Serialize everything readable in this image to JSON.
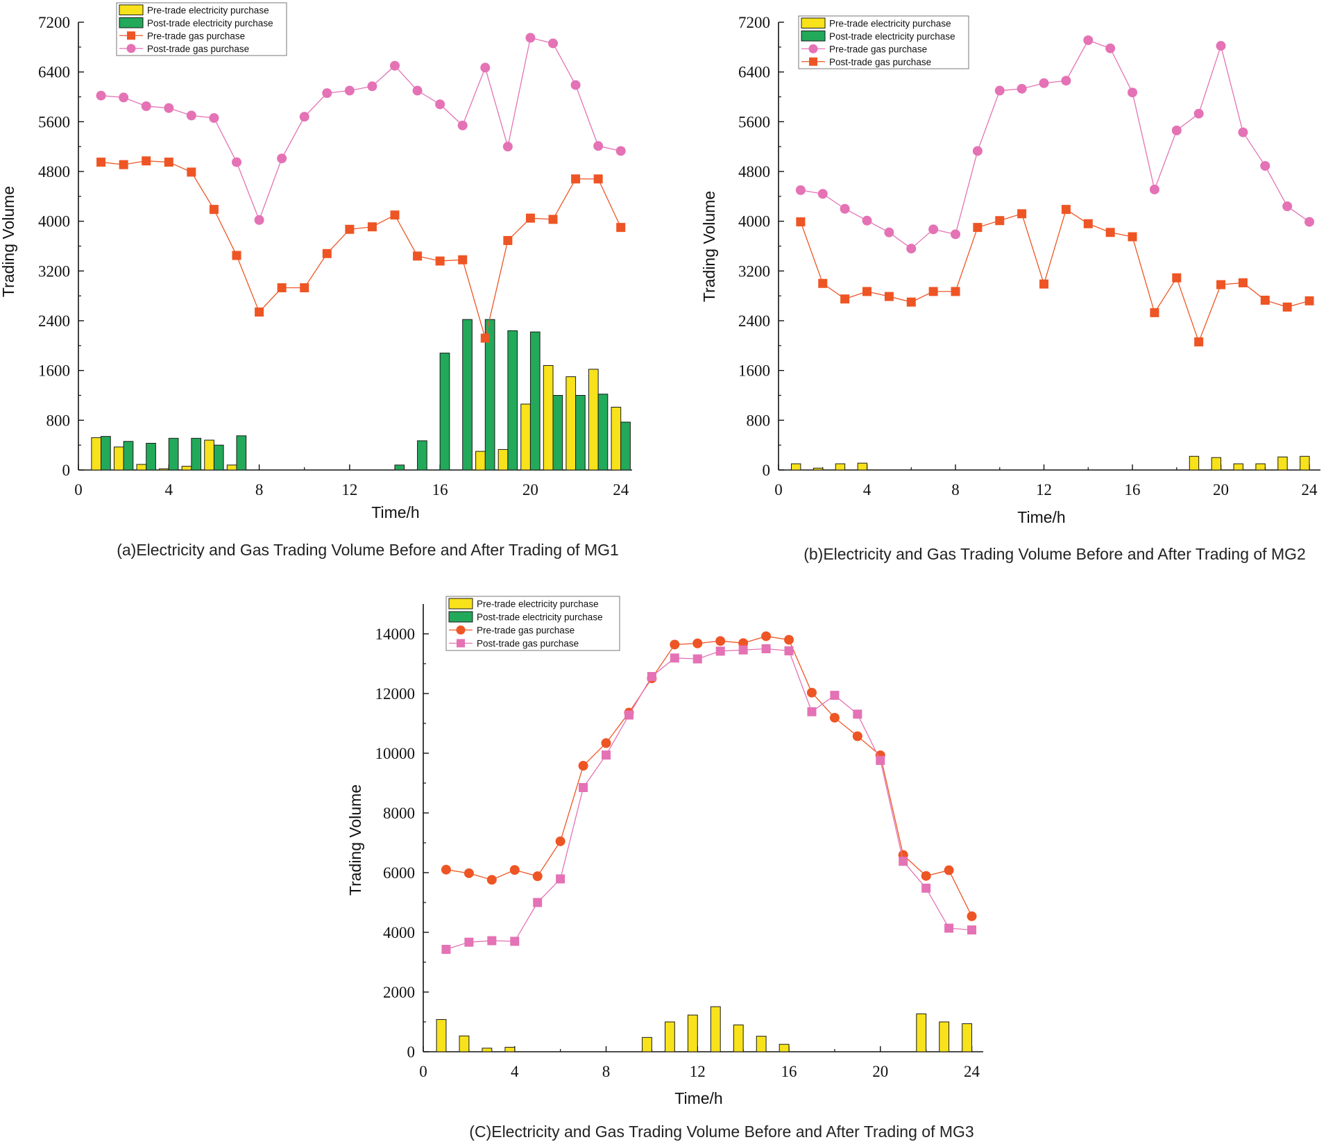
{
  "colors": {
    "pre_elec": "#F7E21B",
    "post_elec": "#22A95A",
    "gas_orange": "#EE5524",
    "gas_pink": "#E472B5",
    "bar_edge": "#1a1a1a"
  },
  "chart_data": [
    {
      "id": "mg1",
      "type": "bar+line",
      "title": "(a)Electricity and Gas Trading Volume Before and After Trading of MG1",
      "xlabel": "Time/h",
      "ylabel": "Trading Volume",
      "xlim": [
        0,
        24.5
      ],
      "ylim": [
        0,
        7200
      ],
      "xticks": [
        0,
        4,
        8,
        12,
        16,
        20,
        24
      ],
      "yticks": [
        0,
        800,
        1600,
        2400,
        3200,
        4000,
        4800,
        5600,
        6400,
        7200
      ],
      "x": [
        1,
        2,
        3,
        4,
        5,
        6,
        7,
        8,
        9,
        10,
        11,
        12,
        13,
        14,
        15,
        16,
        17,
        18,
        19,
        20,
        21,
        22,
        23,
        24
      ],
      "legend": [
        {
          "label": "Pre-trade electricity purchase",
          "kind": "bar",
          "color": "#F7E21B"
        },
        {
          "label": "Post-trade electricity purchase",
          "kind": "bar",
          "color": "#22A95A"
        },
        {
          "label": "Pre-trade gas purchase",
          "kind": "line",
          "marker": "square",
          "color": "#EE5524"
        },
        {
          "label": "Post-trade gas purchase",
          "kind": "line",
          "marker": "circle",
          "color": "#E472B5"
        }
      ],
      "bars_pre": [
        520,
        370,
        90,
        20,
        60,
        480,
        80,
        0,
        0,
        0,
        0,
        0,
        0,
        0,
        0,
        0,
        0,
        300,
        330,
        1060,
        1680,
        1500,
        1620,
        1010
      ],
      "bars_post": [
        540,
        460,
        430,
        510,
        510,
        400,
        550,
        0,
        0,
        0,
        0,
        0,
        0,
        80,
        470,
        1880,
        2420,
        2420,
        2240,
        2220,
        1200,
        1200,
        1220,
        770
      ],
      "lines": [
        {
          "values": [
            4950,
            4910,
            4970,
            4950,
            4790,
            4190,
            3450,
            2540,
            2930,
            2930,
            3480,
            3870,
            3910,
            4100,
            3440,
            3360,
            3380,
            2120,
            3690,
            4050,
            4030,
            4680,
            4680,
            3900
          ]
        },
        {
          "values": [
            6020,
            5990,
            5850,
            5820,
            5700,
            5660,
            4950,
            4020,
            5010,
            5680,
            6060,
            6100,
            6170,
            6500,
            6100,
            5880,
            5540,
            6470,
            5200,
            6950,
            6860,
            6190,
            5210,
            5130
          ]
        }
      ]
    },
    {
      "id": "mg2",
      "type": "bar+line",
      "title": "(b)Electricity and Gas Trading Volume Before and After Trading of MG2",
      "xlabel": "Time/h",
      "ylabel": "Trading Volume",
      "xlim": [
        0,
        24.5
      ],
      "ylim": [
        0,
        7200
      ],
      "xticks": [
        0,
        4,
        8,
        12,
        16,
        20,
        24
      ],
      "yticks": [
        0,
        800,
        1600,
        2400,
        3200,
        4000,
        4800,
        5600,
        6400,
        7200
      ],
      "x": [
        1,
        2,
        3,
        4,
        5,
        6,
        7,
        8,
        9,
        10,
        11,
        12,
        13,
        14,
        15,
        16,
        17,
        18,
        19,
        20,
        21,
        22,
        23,
        24
      ],
      "legend": [
        {
          "label": "Pre-trade electricity purchase",
          "kind": "bar",
          "color": "#F7E21B"
        },
        {
          "label": "Post-trade electricity purchase",
          "kind": "bar",
          "color": "#22A95A"
        },
        {
          "label": "Pre-trade gas purchase",
          "kind": "line",
          "marker": "circle",
          "color": "#E472B5"
        },
        {
          "label": "Post-trade gas purchase",
          "kind": "line",
          "marker": "square",
          "color": "#EE5524"
        }
      ],
      "bars_pre": [
        100,
        30,
        100,
        110,
        0,
        0,
        0,
        0,
        0,
        0,
        0,
        0,
        0,
        0,
        0,
        0,
        0,
        0,
        220,
        200,
        100,
        100,
        210,
        220
      ],
      "bars_post": [
        0,
        0,
        0,
        0,
        0,
        0,
        0,
        0,
        0,
        0,
        0,
        0,
        0,
        0,
        0,
        0,
        0,
        0,
        0,
        0,
        0,
        0,
        0,
        0
      ],
      "lines": [
        {
          "values": [
            4500,
            4440,
            4200,
            4010,
            3820,
            3560,
            3870,
            3790,
            5130,
            6100,
            6130,
            6220,
            6260,
            6910,
            6780,
            6070,
            4510,
            5460,
            5730,
            6820,
            5430,
            4890,
            4240,
            3990
          ]
        },
        {
          "values": [
            3990,
            3000,
            2750,
            2870,
            2790,
            2700,
            2870,
            2870,
            3900,
            4010,
            4120,
            2990,
            4190,
            3960,
            3820,
            3750,
            2530,
            3090,
            2060,
            2980,
            3010,
            2730,
            2620,
            2720
          ]
        }
      ]
    },
    {
      "id": "mg3",
      "type": "bar+line",
      "title": "(C)Electricity and Gas Trading Volume Before and After Trading of MG3",
      "xlabel": "Time/h",
      "ylabel": "Trading Volume",
      "xlim": [
        0,
        24.5
      ],
      "ylim": [
        0,
        15000
      ],
      "xticks": [
        0,
        4,
        8,
        12,
        16,
        20,
        24
      ],
      "yticks": [
        0,
        2000,
        4000,
        6000,
        8000,
        10000,
        12000,
        14000
      ],
      "x": [
        1,
        2,
        3,
        4,
        5,
        6,
        7,
        8,
        9,
        10,
        11,
        12,
        13,
        14,
        15,
        16,
        17,
        18,
        19,
        20,
        21,
        22,
        23,
        24
      ],
      "legend": [
        {
          "label": "Pre-trade electricity purchase",
          "kind": "bar",
          "color": "#F7E21B"
        },
        {
          "label": "Post-trade electricity purchase",
          "kind": "bar",
          "color": "#22A95A"
        },
        {
          "label": "Pre-trade gas purchase",
          "kind": "line",
          "marker": "circle",
          "color": "#EE5524"
        },
        {
          "label": "Post-trade gas purchase",
          "kind": "line",
          "marker": "square",
          "color": "#E472B5"
        }
      ],
      "bars_pre": [
        1080,
        530,
        120,
        150,
        0,
        0,
        0,
        0,
        0,
        480,
        1000,
        1230,
        1510,
        900,
        520,
        250,
        0,
        0,
        0,
        0,
        0,
        1270,
        1000,
        940
      ],
      "bars_post": [
        0,
        0,
        0,
        0,
        0,
        0,
        0,
        0,
        0,
        0,
        0,
        0,
        0,
        0,
        0,
        0,
        0,
        0,
        0,
        0,
        0,
        0,
        0,
        0
      ],
      "lines": [
        {
          "values": [
            6100,
            5980,
            5760,
            6090,
            5880,
            7050,
            9580,
            10340,
            11360,
            12510,
            13640,
            13680,
            13760,
            13690,
            13920,
            13800,
            12030,
            11190,
            10570,
            9930,
            6590,
            5890,
            6080,
            4540
          ]
        },
        {
          "values": [
            3430,
            3670,
            3720,
            3700,
            5000,
            5790,
            8850,
            9940,
            11280,
            12570,
            13190,
            13160,
            13420,
            13460,
            13500,
            13430,
            11390,
            11940,
            11310,
            9760,
            6380,
            5480,
            4140,
            4080
          ]
        }
      ]
    }
  ]
}
